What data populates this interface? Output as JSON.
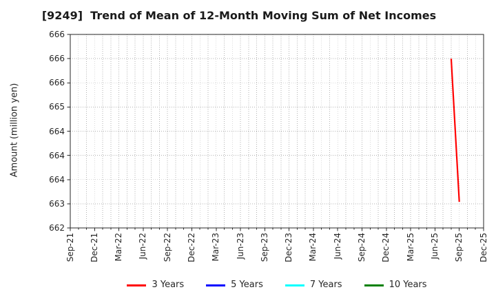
{
  "chart_data": {
    "type": "line",
    "title": "[9249]  Trend of Mean of 12-Month Moving Sum of Net Incomes",
    "ylabel": "Amount (million yen)",
    "xlabel": "",
    "ylim": [
      662.5,
      666.5
    ],
    "y_tick_step": 0.5,
    "y_tick_labels_top_to_bottom": [
      "666",
      "666",
      "666",
      "665",
      "664",
      "664",
      "664",
      "663",
      "662"
    ],
    "x_tick_labels": [
      "Sep-21",
      "Dec-21",
      "Mar-22",
      "Jun-22",
      "Sep-22",
      "Dec-22",
      "Mar-23",
      "Jun-23",
      "Sep-23",
      "Dec-23",
      "Mar-24",
      "Jun-24",
      "Sep-24",
      "Dec-24",
      "Mar-25",
      "Jun-25",
      "Sep-25",
      "Dec-25"
    ],
    "x_tick_interval_months": 3,
    "x_total_months": 51,
    "grid": {
      "visible": true,
      "style": "dotted",
      "vertical_interval": "monthly",
      "color": "#b2b2b2"
    },
    "axis_color": "#262626",
    "legend_position": "bottom-center",
    "series": [
      {
        "name": "3 Years",
        "color": "#ff0000",
        "points": [
          {
            "label": "Aug-25",
            "month_index": 47,
            "value": 666.0
          },
          {
            "label": "Sep-25",
            "month_index": 48,
            "value": 663.04
          }
        ]
      },
      {
        "name": "5 Years",
        "color": "#0000ff",
        "points": []
      },
      {
        "name": "7 Years",
        "color": "#00ffff",
        "points": []
      },
      {
        "name": "10 Years",
        "color": "#008000",
        "points": []
      }
    ]
  },
  "legend": {
    "items": [
      {
        "label": "3 Years",
        "color": "#ff0000"
      },
      {
        "label": "5 Years",
        "color": "#0000ff"
      },
      {
        "label": "7 Years",
        "color": "#00ffff"
      },
      {
        "label": "10 Years",
        "color": "#008000"
      }
    ]
  }
}
